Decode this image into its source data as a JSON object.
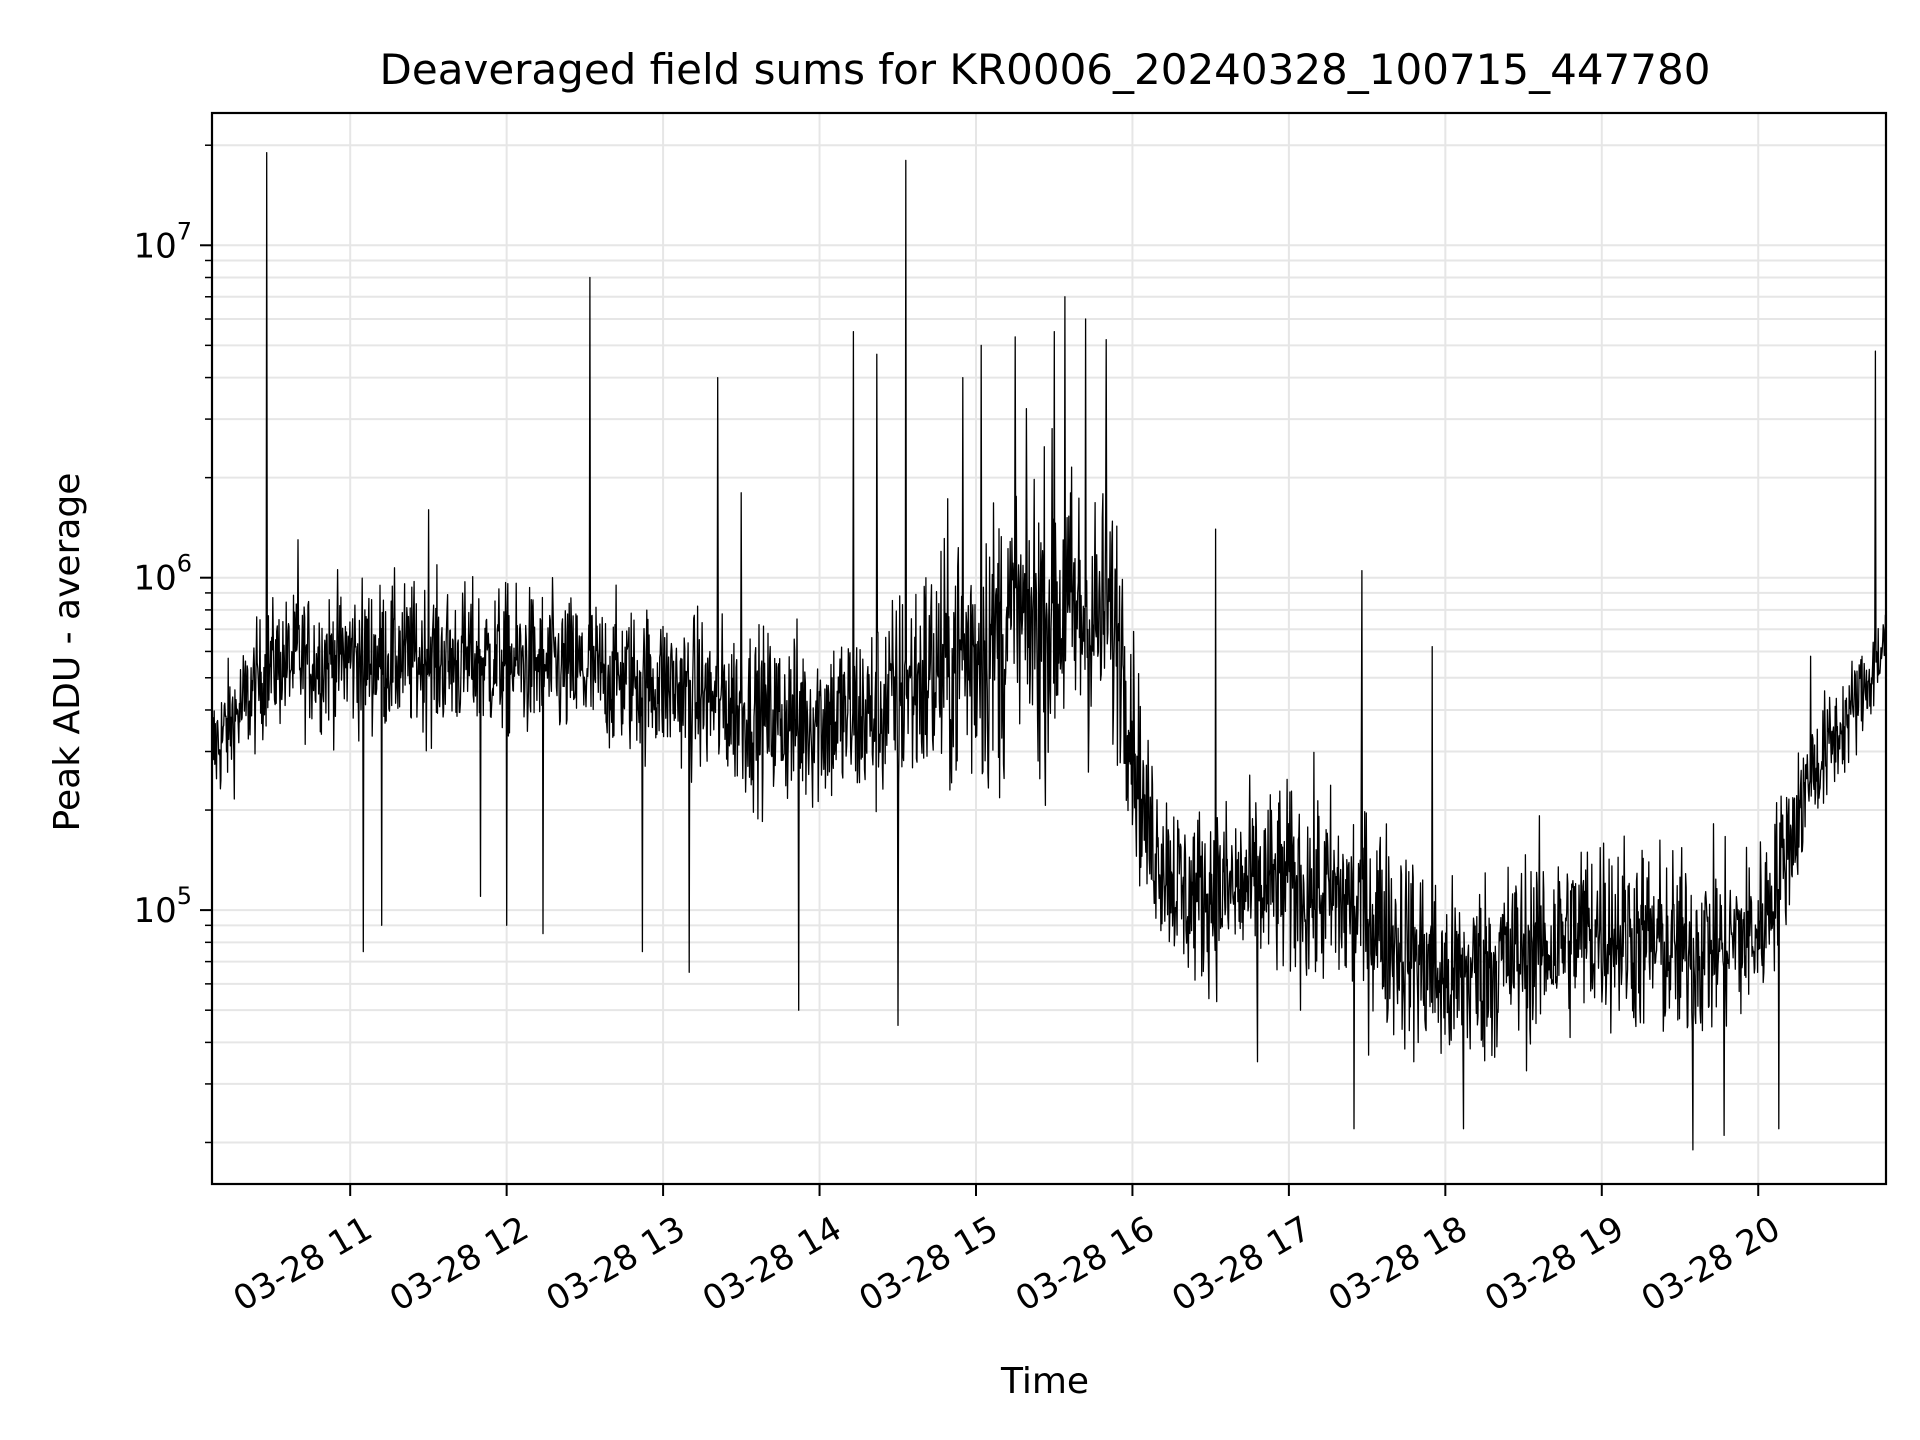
{
  "chart_data": {
    "type": "line",
    "title": "Deaveraged field sums for KR0006_20240328_100715_447780",
    "xlabel": "Time",
    "ylabel": "Peak ADU - average",
    "yscale": "log",
    "ylim": [
      15000,
      25000000
    ],
    "xlim": [
      "2024-03-28 10:07",
      "2024-03-28 20:49"
    ],
    "grid": true,
    "line_color": "#000000",
    "grid_color": "#e6e6e6",
    "x_ticks": [
      {
        "time": "2024-03-28 11:00",
        "label": "03-28 11"
      },
      {
        "time": "2024-03-28 12:00",
        "label": "03-28 12"
      },
      {
        "time": "2024-03-28 13:00",
        "label": "03-28 13"
      },
      {
        "time": "2024-03-28 14:00",
        "label": "03-28 14"
      },
      {
        "time": "2024-03-28 15:00",
        "label": "03-28 15"
      },
      {
        "time": "2024-03-28 16:00",
        "label": "03-28 16"
      },
      {
        "time": "2024-03-28 17:00",
        "label": "03-28 17"
      },
      {
        "time": "2024-03-28 18:00",
        "label": "03-28 18"
      },
      {
        "time": "2024-03-28 19:00",
        "label": "03-28 19"
      },
      {
        "time": "2024-03-28 20:00",
        "label": "03-28 20"
      }
    ],
    "y_ticks": [
      {
        "value": 100000,
        "base": "10",
        "exp": "5"
      },
      {
        "value": 1000000,
        "base": "10",
        "exp": "6"
      },
      {
        "value": 10000000,
        "base": "10",
        "exp": "7"
      }
    ],
    "series": [
      {
        "profile": [
          {
            "time": "2024-03-28 10:07",
            "value": 300000,
            "spread": 1.4
          },
          {
            "time": "2024-03-28 10:30",
            "value": 550000,
            "spread": 1.4
          },
          {
            "time": "2024-03-28 11:00",
            "value": 580000,
            "spread": 1.5
          },
          {
            "time": "2024-03-28 12:00",
            "value": 560000,
            "spread": 1.5
          },
          {
            "time": "2024-03-28 13:00",
            "value": 480000,
            "spread": 1.5
          },
          {
            "time": "2024-03-28 13:40",
            "value": 380000,
            "spread": 1.6
          },
          {
            "time": "2024-03-28 14:20",
            "value": 380000,
            "spread": 1.7
          },
          {
            "time": "2024-03-28 14:40",
            "value": 500000,
            "spread": 1.9
          },
          {
            "time": "2024-03-28 15:00",
            "value": 600000,
            "spread": 2.2
          },
          {
            "time": "2024-03-28 15:30",
            "value": 800000,
            "spread": 2.3
          },
          {
            "time": "2024-03-28 15:55",
            "value": 700000,
            "spread": 2.0
          },
          {
            "time": "2024-03-28 16:05",
            "value": 180000,
            "spread": 1.6
          },
          {
            "time": "2024-03-28 16:20",
            "value": 110000,
            "spread": 1.6
          },
          {
            "time": "2024-03-28 17:00",
            "value": 120000,
            "spread": 1.7
          },
          {
            "time": "2024-03-28 17:30",
            "value": 100000,
            "spread": 1.8
          },
          {
            "time": "2024-03-28 18:00",
            "value": 60000,
            "spread": 1.7
          },
          {
            "time": "2024-03-28 18:30",
            "value": 75000,
            "spread": 1.7
          },
          {
            "time": "2024-03-28 19:00",
            "value": 90000,
            "spread": 1.7
          },
          {
            "time": "2024-03-28 19:30",
            "value": 75000,
            "spread": 1.7
          },
          {
            "time": "2024-03-28 20:00",
            "value": 85000,
            "spread": 1.6
          },
          {
            "time": "2024-03-28 20:20",
            "value": 250000,
            "spread": 1.4
          },
          {
            "time": "2024-03-28 20:40",
            "value": 450000,
            "spread": 1.3
          },
          {
            "time": "2024-03-28 20:49",
            "value": 650000,
            "spread": 1.3
          }
        ],
        "spikes": [
          {
            "time": "2024-03-28 10:28",
            "value": 19000000
          },
          {
            "time": "2024-03-28 10:40",
            "value": 1300000
          },
          {
            "time": "2024-03-28 11:05",
            "value": 75000
          },
          {
            "time": "2024-03-28 11:12",
            "value": 90000
          },
          {
            "time": "2024-03-28 11:30",
            "value": 1600000
          },
          {
            "time": "2024-03-28 11:50",
            "value": 110000
          },
          {
            "time": "2024-03-28 12:00",
            "value": 90000
          },
          {
            "time": "2024-03-28 12:14",
            "value": 85000
          },
          {
            "time": "2024-03-28 12:32",
            "value": 8000000
          },
          {
            "time": "2024-03-28 12:52",
            "value": 75000
          },
          {
            "time": "2024-03-28 13:10",
            "value": 65000
          },
          {
            "time": "2024-03-28 13:21",
            "value": 4000000
          },
          {
            "time": "2024-03-28 13:30",
            "value": 1800000
          },
          {
            "time": "2024-03-28 13:52",
            "value": 50000
          },
          {
            "time": "2024-03-28 14:13",
            "value": 5500000
          },
          {
            "time": "2024-03-28 14:22",
            "value": 4700000
          },
          {
            "time": "2024-03-28 14:30",
            "value": 45000
          },
          {
            "time": "2024-03-28 14:33",
            "value": 18000000
          },
          {
            "time": "2024-03-28 14:55",
            "value": 4000000
          },
          {
            "time": "2024-03-28 15:02",
            "value": 5000000
          },
          {
            "time": "2024-03-28 15:15",
            "value": 5300000
          },
          {
            "time": "2024-03-28 15:30",
            "value": 5500000
          },
          {
            "time": "2024-03-28 15:34",
            "value": 7000000
          },
          {
            "time": "2024-03-28 15:42",
            "value": 6000000
          },
          {
            "time": "2024-03-28 15:50",
            "value": 5200000
          },
          {
            "time": "2024-03-28 16:32",
            "value": 1400000
          },
          {
            "time": "2024-03-28 16:48",
            "value": 35000
          },
          {
            "time": "2024-03-28 17:28",
            "value": 1050000
          },
          {
            "time": "2024-03-28 17:25",
            "value": 22000
          },
          {
            "time": "2024-03-28 17:55",
            "value": 620000
          },
          {
            "time": "2024-03-28 18:07",
            "value": 22000
          },
          {
            "time": "2024-03-28 19:35",
            "value": 19000
          },
          {
            "time": "2024-03-28 19:47",
            "value": 21000
          },
          {
            "time": "2024-03-28 20:08",
            "value": 22000
          },
          {
            "time": "2024-03-28 20:20",
            "value": 580000
          },
          {
            "time": "2024-03-28 20:45",
            "value": 4800000
          }
        ]
      }
    ]
  }
}
